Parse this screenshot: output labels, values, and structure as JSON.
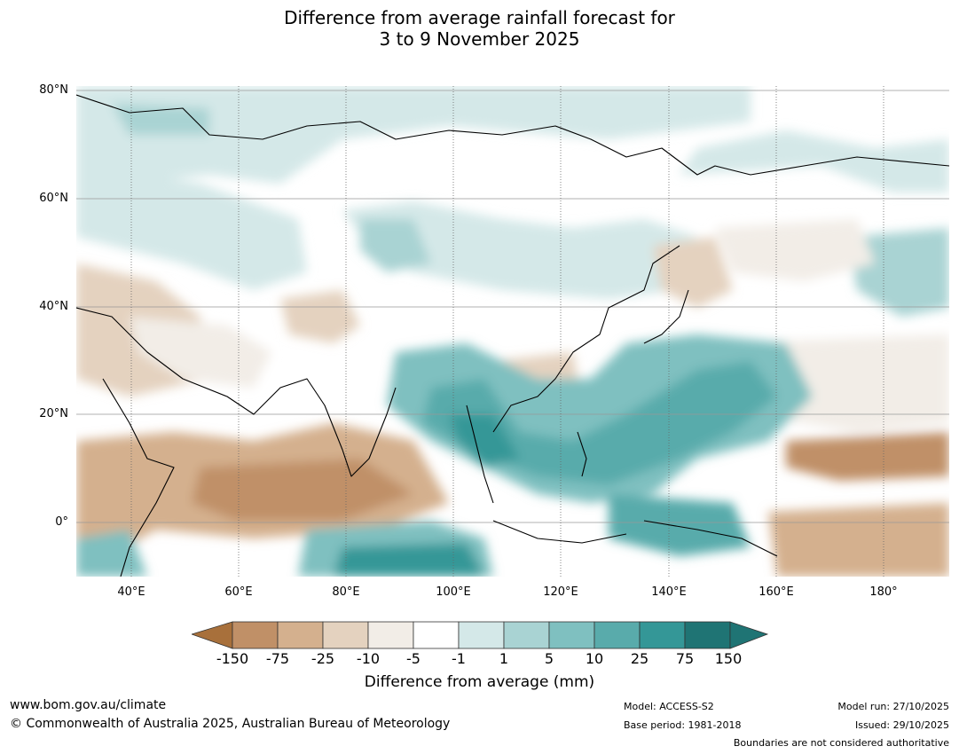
{
  "title": {
    "line1": "Difference from average rainfall forecast for",
    "line2": "3 to 9 November 2025"
  },
  "axes": {
    "lat_labels": [
      "80°N",
      "60°N",
      "40°N",
      "20°N",
      "0°"
    ],
    "lon_labels": [
      "40°E",
      "60°E",
      "80°E",
      "100°E",
      "120°E",
      "140°E",
      "160°E",
      "180°"
    ]
  },
  "colorbar": {
    "ticks": [
      "-150",
      "-75",
      "-25",
      "-10",
      "-5",
      "-1",
      "1",
      "5",
      "10",
      "25",
      "75",
      "150"
    ],
    "colors": [
      "#a8703b",
      "#c09067",
      "#d4b08e",
      "#e4d2bf",
      "#f2ede7",
      "#ffffff",
      "#d4e8e8",
      "#a9d3d3",
      "#7fc0c0",
      "#59abab",
      "#349797",
      "#1f7474"
    ],
    "label": "Difference from average (mm)"
  },
  "footer": {
    "url": "www.bom.gov.au/climate",
    "copyright": "© Commonwealth of Australia 2025, Australian Bureau of Meteorology",
    "model": "Model: ACCESS-S2",
    "base_period": "Base period: 1981-2018",
    "model_run": "Model run: 27/10/2025",
    "issued": "Issued: 29/10/2025",
    "boundaries": "Boundaries are not considered authoritative"
  }
}
